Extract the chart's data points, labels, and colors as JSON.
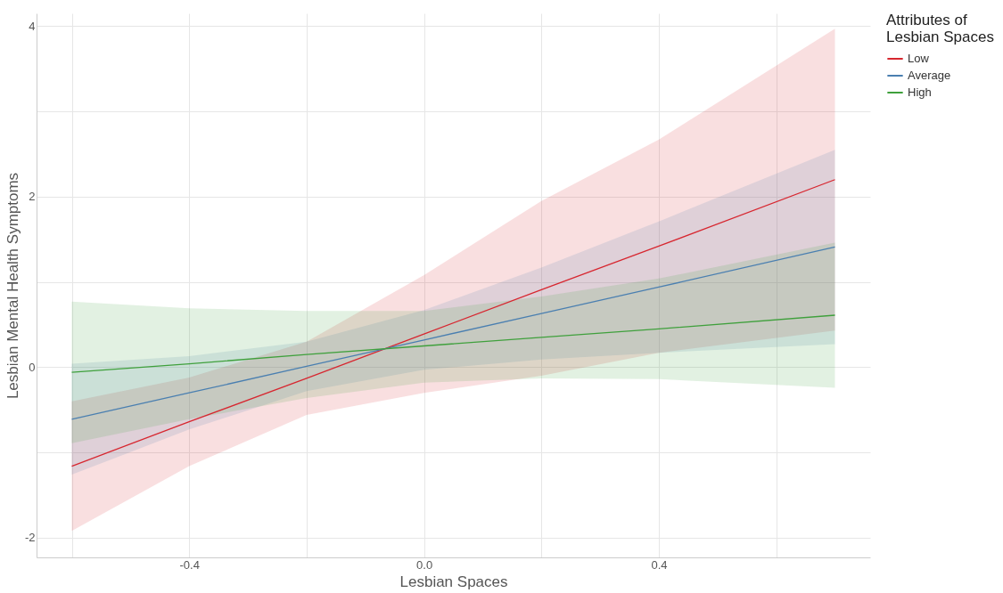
{
  "chart_data": {
    "type": "line",
    "xlabel": "Lesbian Spaces",
    "ylabel": "Lesbian Mental Health Symptoms",
    "legend_title": "Attributes of Lesbian Spaces",
    "legend": "right",
    "grid": true,
    "xlim": [
      -0.66,
      0.76
    ],
    "ylim": [
      -2.23,
      4.15
    ],
    "xticks": [
      {
        "value": -0.6,
        "label": null
      },
      -0.4,
      {
        "value": -0.2,
        "label": null
      },
      {
        "value": 0.0,
        "label": "0.0"
      },
      {
        "value": 0.2,
        "label": null
      },
      0.4,
      {
        "value": 0.6,
        "label": null
      }
    ],
    "yticks": [
      -2,
      {
        "value": -1,
        "label": null
      },
      0,
      {
        "value": 1,
        "label": null
      },
      2,
      {
        "value": 3,
        "label": null
      },
      4
    ],
    "series": [
      {
        "name": "Low",
        "color": "#d7262f",
        "x": [
          -0.6,
          -0.4,
          -0.2,
          0,
          0.2,
          0.4,
          0.7
        ],
        "values": [
          -1.16,
          -0.64,
          -0.13,
          0.39,
          0.91,
          1.42,
          2.2
        ],
        "lower": [
          -1.92,
          -1.16,
          -0.56,
          -0.3,
          -0.1,
          0.17,
          0.43
        ],
        "upper": [
          -0.4,
          -0.12,
          0.3,
          1.08,
          1.95,
          2.67,
          3.97
        ]
      },
      {
        "name": "Average",
        "color": "#4a7fb0",
        "x": [
          -0.6,
          -0.4,
          -0.2,
          0,
          0.2,
          0.4,
          0.7
        ],
        "values": [
          -0.61,
          -0.3,
          0.01,
          0.32,
          0.63,
          0.94,
          1.41
        ],
        "lower": [
          -1.26,
          -0.73,
          -0.28,
          -0.03,
          0.09,
          0.17,
          0.27
        ],
        "upper": [
          0.04,
          0.13,
          0.3,
          0.67,
          1.17,
          1.71,
          2.55
        ]
      },
      {
        "name": "High",
        "color": "#3fa03c",
        "x": [
          -0.6,
          -0.4,
          -0.2,
          0,
          0.2,
          0.4,
          0.7
        ],
        "values": [
          -0.06,
          0.04,
          0.15,
          0.25,
          0.35,
          0.45,
          0.61
        ],
        "lower": [
          -0.89,
          -0.61,
          -0.36,
          -0.18,
          -0.13,
          -0.14,
          -0.24
        ],
        "upper": [
          0.77,
          0.69,
          0.66,
          0.66,
          0.83,
          1.04,
          1.46
        ]
      }
    ]
  }
}
